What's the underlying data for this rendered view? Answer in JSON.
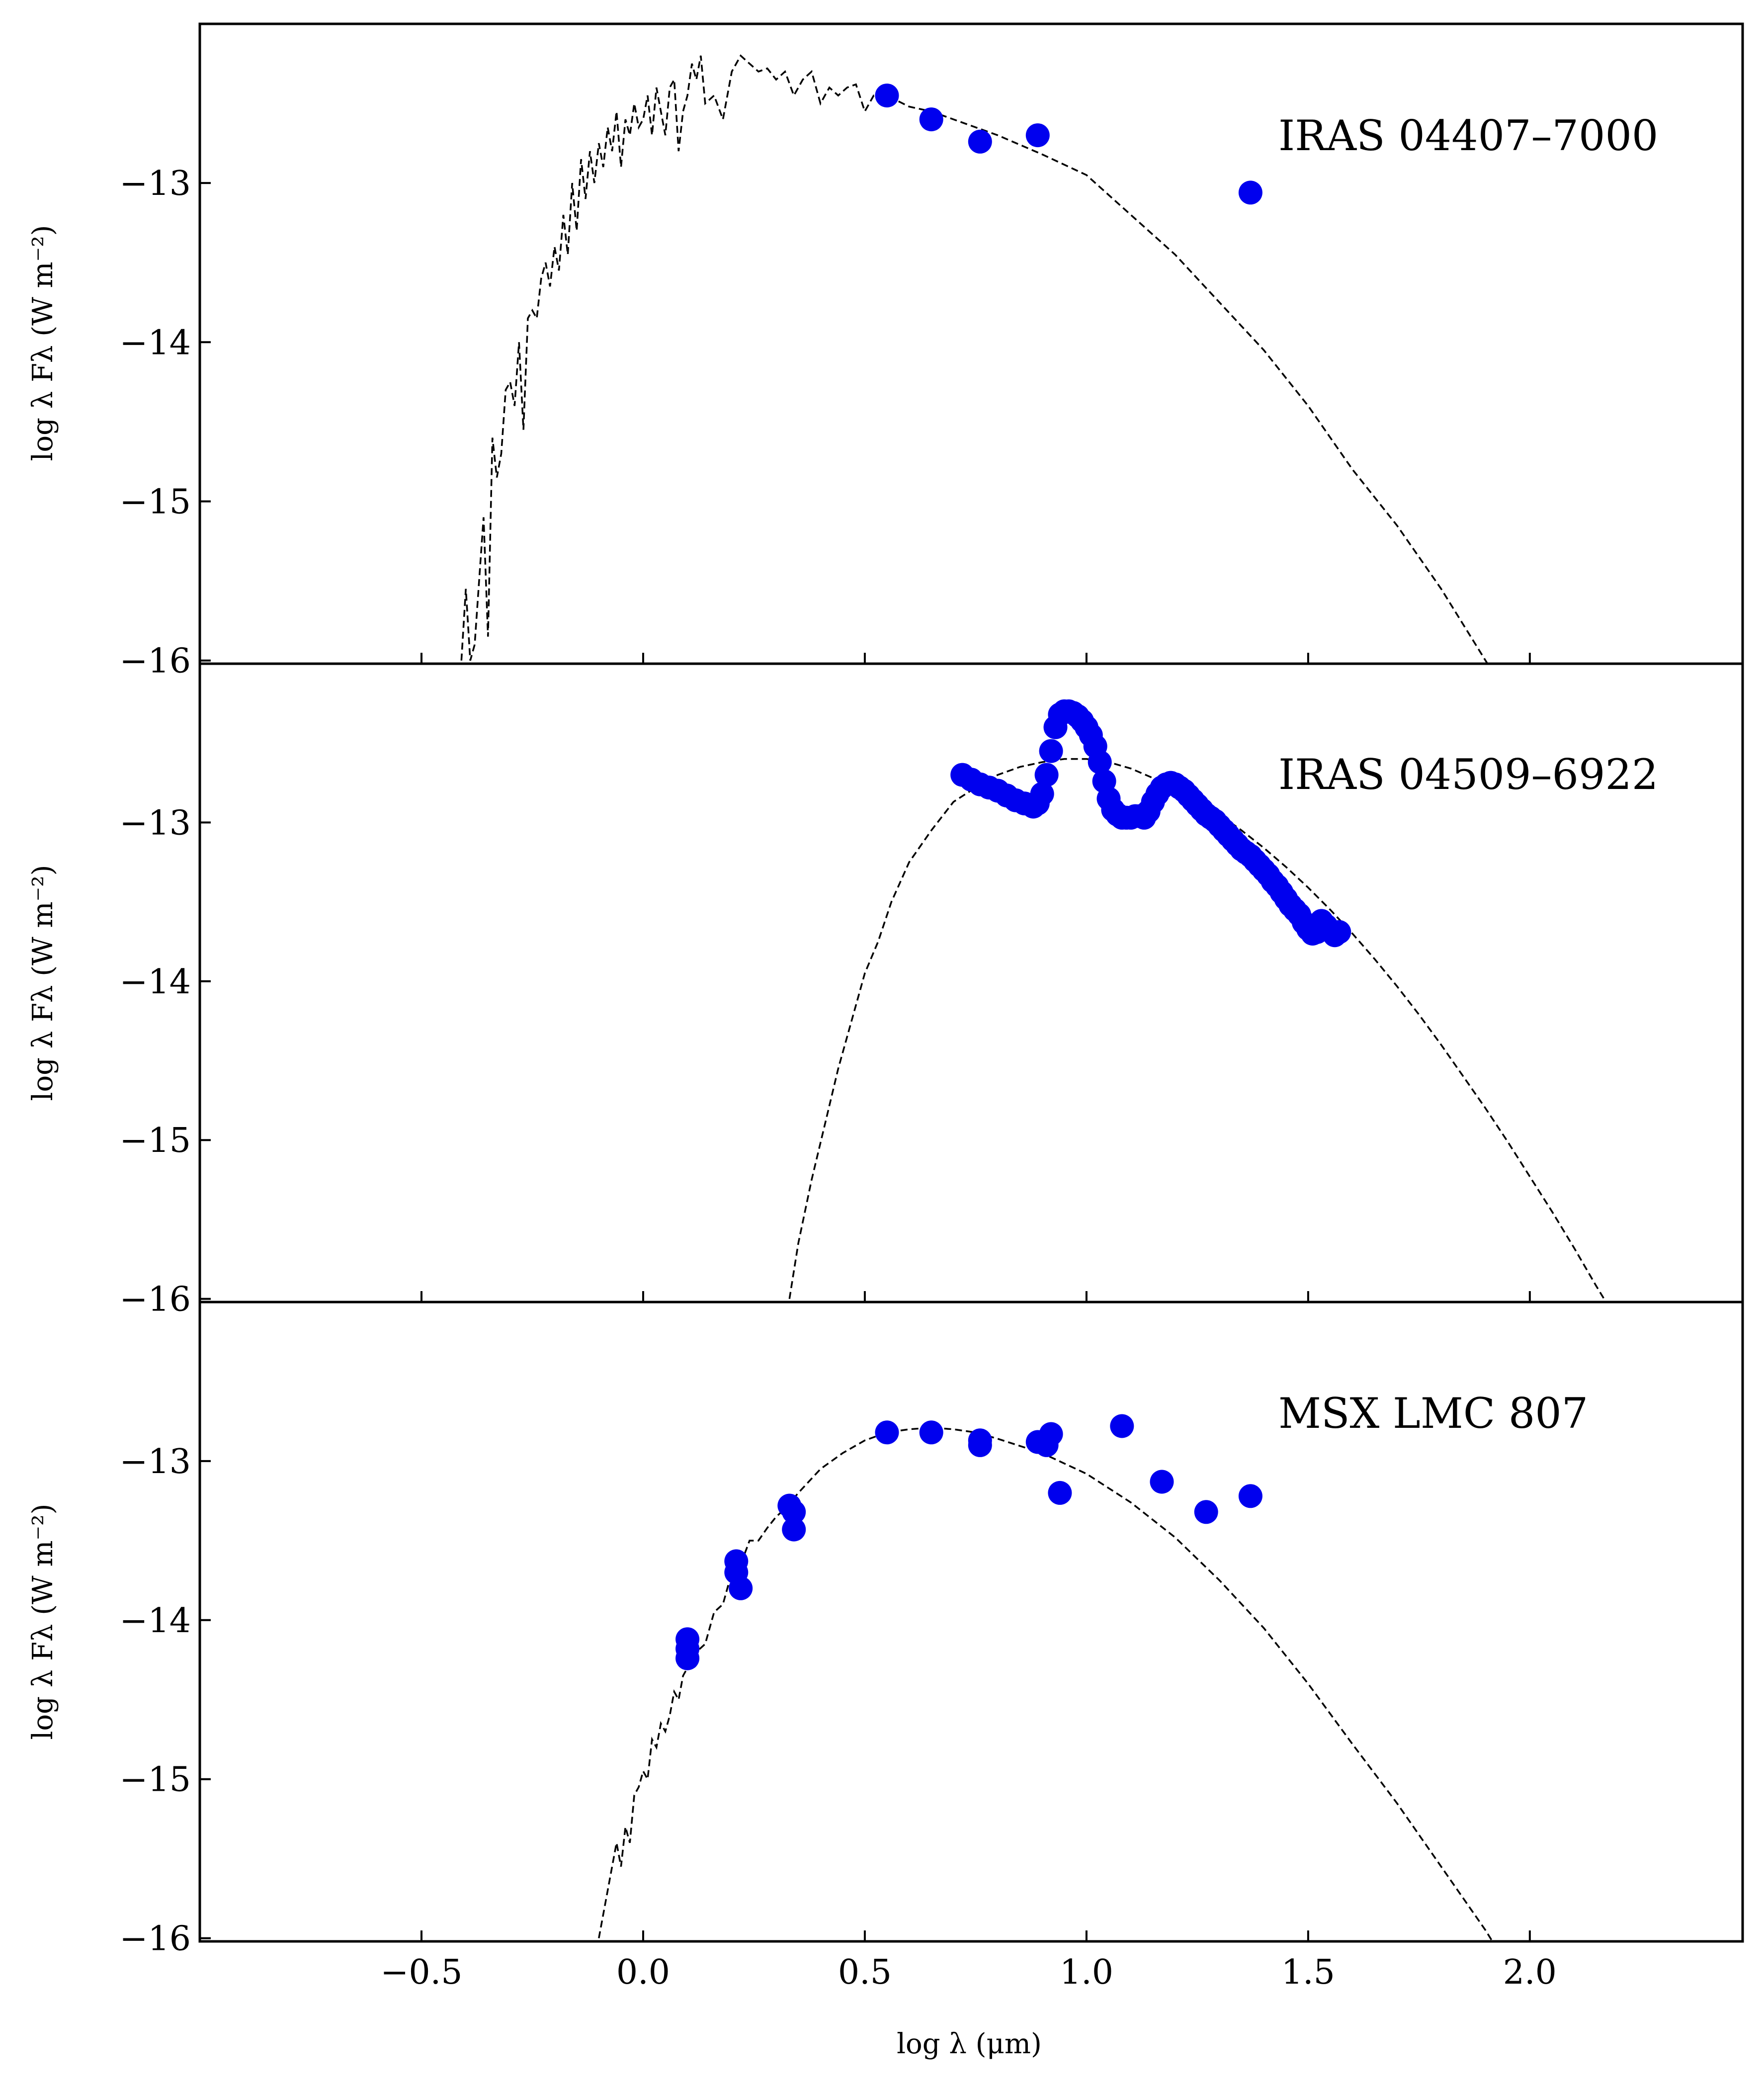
{
  "colors": {
    "points": "#0000ee",
    "model": "#000000",
    "frame": "#000000"
  },
  "chart_data": [
    {
      "type": "scatter",
      "annotation": "IRAS 04407–7000",
      "ylabel": "log λ Fλ (W m⁻²)",
      "xlabel": "",
      "xlim": [
        -1.0,
        2.48
      ],
      "ylim": [
        -16.02,
        -12.0
      ],
      "yticks": [
        -13,
        -14,
        -15,
        -16
      ],
      "ytick_labels": [
        "−13",
        "−14",
        "−15",
        "−16"
      ],
      "grid": false,
      "series": [
        {
          "kind": "points",
          "marker_r": 24,
          "x": [
            0.55,
            0.65,
            0.76,
            0.89,
            1.37
          ],
          "y": [
            -12.45,
            -12.6,
            -12.74,
            -12.7,
            -13.06
          ]
        },
        {
          "kind": "line",
          "x": [
            -0.41,
            -0.4,
            -0.39,
            -0.38,
            -0.37,
            -0.36,
            -0.35,
            -0.34,
            -0.33,
            -0.32,
            -0.31,
            -0.3,
            -0.29,
            -0.28,
            -0.27,
            -0.26,
            -0.25,
            -0.24,
            -0.23,
            -0.22,
            -0.21,
            -0.2,
            -0.19,
            -0.18,
            -0.17,
            -0.16,
            -0.15,
            -0.14,
            -0.13,
            -0.12,
            -0.11,
            -0.1,
            -0.09,
            -0.08,
            -0.07,
            -0.06,
            -0.05,
            -0.04,
            -0.03,
            -0.02,
            -0.01,
            0.0,
            0.01,
            0.02,
            0.03,
            0.04,
            0.05,
            0.06,
            0.07,
            0.08,
            0.09,
            0.1,
            0.11,
            0.12,
            0.13,
            0.14,
            0.16,
            0.18,
            0.2,
            0.22,
            0.24,
            0.26,
            0.28,
            0.3,
            0.32,
            0.34,
            0.36,
            0.38,
            0.4,
            0.42,
            0.44,
            0.46,
            0.48,
            0.5,
            0.52,
            0.55,
            0.6,
            0.65,
            0.7,
            0.8,
            0.9,
            1.0,
            1.1,
            1.2,
            1.3,
            1.4,
            1.5,
            1.6,
            1.7,
            1.8,
            1.9,
            2.0
          ],
          "y": [
            -16.0,
            -15.55,
            -16.0,
            -15.9,
            -15.5,
            -15.1,
            -15.85,
            -14.6,
            -14.85,
            -14.7,
            -14.3,
            -14.25,
            -14.4,
            -14.0,
            -14.55,
            -13.85,
            -13.8,
            -13.85,
            -13.6,
            -13.5,
            -13.65,
            -13.4,
            -13.55,
            -13.2,
            -13.45,
            -13.0,
            -13.3,
            -12.85,
            -13.1,
            -12.8,
            -13.0,
            -12.75,
            -12.9,
            -12.65,
            -12.8,
            -12.55,
            -12.9,
            -12.6,
            -12.7,
            -12.5,
            -12.65,
            -12.6,
            -12.45,
            -12.7,
            -12.4,
            -12.55,
            -12.7,
            -12.4,
            -12.35,
            -12.8,
            -12.55,
            -12.45,
            -12.25,
            -12.35,
            -12.2,
            -12.5,
            -12.45,
            -12.6,
            -12.3,
            -12.2,
            -12.25,
            -12.3,
            -12.28,
            -12.35,
            -12.3,
            -12.45,
            -12.35,
            -12.3,
            -12.5,
            -12.4,
            -12.45,
            -12.4,
            -12.38,
            -12.55,
            -12.45,
            -12.45,
            -12.52,
            -12.55,
            -12.6,
            -12.7,
            -12.82,
            -12.95,
            -13.2,
            -13.45,
            -13.75,
            -14.05,
            -14.4,
            -14.8,
            -15.15,
            -15.55,
            -16.0,
            -16.45
          ]
        }
      ]
    },
    {
      "type": "scatter",
      "annotation": "IRAS 04509–6922",
      "ylabel": "log λ Fλ (W m⁻²)",
      "xlabel": "",
      "xlim": [
        -1.0,
        2.48
      ],
      "ylim": [
        -16.02,
        -12.0
      ],
      "yticks": [
        -13,
        -14,
        -15,
        -16
      ],
      "ytick_labels": [
        "−13",
        "−14",
        "−15",
        "−16"
      ],
      "grid": false,
      "series": [
        {
          "kind": "points",
          "marker_r": 24,
          "x": [
            0.72,
            0.74,
            0.76,
            0.78,
            0.8,
            0.82,
            0.84,
            0.86,
            0.88,
            0.89,
            0.9,
            0.91,
            0.92,
            0.93,
            0.94,
            0.95,
            0.96,
            0.97,
            0.98,
            0.99,
            1.0,
            1.01,
            1.02,
            1.03,
            1.04,
            1.05,
            1.06,
            1.07,
            1.08,
            1.09,
            1.1,
            1.11,
            1.12,
            1.13,
            1.14,
            1.15,
            1.16,
            1.17,
            1.18,
            1.19,
            1.2,
            1.21,
            1.22,
            1.23,
            1.24,
            1.25,
            1.26,
            1.27,
            1.28,
            1.29,
            1.3,
            1.31,
            1.32,
            1.33,
            1.34,
            1.35,
            1.36,
            1.37,
            1.38,
            1.39,
            1.4,
            1.41,
            1.42,
            1.43,
            1.44,
            1.45,
            1.46,
            1.47,
            1.48,
            1.49,
            1.5,
            1.51,
            1.52,
            1.53,
            1.54,
            1.55,
            1.56,
            1.57
          ],
          "y": [
            -12.7,
            -12.73,
            -12.76,
            -12.78,
            -12.8,
            -12.83,
            -12.86,
            -12.88,
            -12.9,
            -12.88,
            -12.82,
            -12.7,
            -12.55,
            -12.4,
            -12.32,
            -12.3,
            -12.3,
            -12.31,
            -12.33,
            -12.36,
            -12.4,
            -12.45,
            -12.52,
            -12.62,
            -12.74,
            -12.85,
            -12.92,
            -12.95,
            -12.97,
            -12.97,
            -12.97,
            -12.96,
            -12.96,
            -12.97,
            -12.93,
            -12.87,
            -12.82,
            -12.78,
            -12.76,
            -12.75,
            -12.76,
            -12.78,
            -12.8,
            -12.83,
            -12.86,
            -12.89,
            -12.92,
            -12.95,
            -12.97,
            -12.99,
            -13.02,
            -13.05,
            -13.08,
            -13.11,
            -13.14,
            -13.17,
            -13.19,
            -13.21,
            -13.24,
            -13.27,
            -13.3,
            -13.33,
            -13.37,
            -13.4,
            -13.44,
            -13.48,
            -13.52,
            -13.55,
            -13.58,
            -13.63,
            -13.67,
            -13.7,
            -13.69,
            -13.62,
            -13.65,
            -13.68,
            -13.71,
            -13.69
          ]
        },
        {
          "kind": "line",
          "x": [
            0.33,
            0.35,
            0.38,
            0.41,
            0.44,
            0.47,
            0.5,
            0.53,
            0.56,
            0.6,
            0.65,
            0.7,
            0.75,
            0.8,
            0.85,
            0.9,
            0.95,
            1.0,
            1.05,
            1.1,
            1.15,
            1.2,
            1.25,
            1.3,
            1.35,
            1.4,
            1.45,
            1.5,
            1.55,
            1.6,
            1.65,
            1.7,
            1.75,
            1.8,
            1.85,
            1.9,
            1.95,
            2.0,
            2.05,
            2.1,
            2.15,
            2.2,
            2.25
          ],
          "y": [
            -16.0,
            -15.65,
            -15.25,
            -14.9,
            -14.55,
            -14.25,
            -13.95,
            -13.75,
            -13.5,
            -13.25,
            -13.05,
            -12.87,
            -12.78,
            -12.7,
            -12.65,
            -12.62,
            -12.6,
            -12.6,
            -12.62,
            -12.66,
            -12.72,
            -12.79,
            -12.86,
            -12.95,
            -13.05,
            -13.16,
            -13.28,
            -13.41,
            -13.55,
            -13.7,
            -13.86,
            -14.03,
            -14.21,
            -14.4,
            -14.6,
            -14.8,
            -15.01,
            -15.23,
            -15.45,
            -15.68,
            -15.92,
            -16.15,
            -16.4
          ]
        }
      ]
    },
    {
      "type": "scatter",
      "annotation": "MSX LMC 807",
      "ylabel": "log λ Fλ (W m⁻²)",
      "xlabel": "log λ (μm)",
      "xlim": [
        -1.0,
        2.48
      ],
      "ylim": [
        -16.02,
        -12.0
      ],
      "xticks": [
        -0.5,
        0.0,
        0.5,
        1.0,
        1.5,
        2.0
      ],
      "xtick_labels": [
        "−0.5",
        "0.0",
        "0.5",
        "1.0",
        "1.5",
        "2.0"
      ],
      "yticks": [
        -13,
        -14,
        -15,
        -16
      ],
      "ytick_labels": [
        "−13",
        "−14",
        "−15",
        "−16"
      ],
      "grid": false,
      "series": [
        {
          "kind": "points",
          "marker_r": 24,
          "x": [
            0.1,
            0.1,
            0.1,
            0.21,
            0.21,
            0.22,
            0.33,
            0.34,
            0.34,
            0.55,
            0.65,
            0.76,
            0.76,
            0.89,
            0.91,
            0.92,
            0.94,
            1.08,
            1.17,
            1.27,
            1.37
          ],
          "y": [
            -14.12,
            -14.18,
            -14.24,
            -13.63,
            -13.7,
            -13.8,
            -13.28,
            -13.32,
            -13.43,
            -12.82,
            -12.82,
            -12.87,
            -12.9,
            -12.88,
            -12.9,
            -12.83,
            -13.2,
            -12.78,
            -13.13,
            -13.32,
            -13.22
          ]
        },
        {
          "kind": "line",
          "x": [
            -0.1,
            -0.09,
            -0.08,
            -0.07,
            -0.06,
            -0.05,
            -0.04,
            -0.03,
            -0.02,
            -0.01,
            0.0,
            0.01,
            0.02,
            0.03,
            0.04,
            0.05,
            0.06,
            0.07,
            0.08,
            0.09,
            0.1,
            0.12,
            0.14,
            0.16,
            0.18,
            0.2,
            0.22,
            0.24,
            0.26,
            0.28,
            0.3,
            0.32,
            0.35,
            0.4,
            0.45,
            0.5,
            0.55,
            0.6,
            0.65,
            0.7,
            0.75,
            0.8,
            0.9,
            1.0,
            1.1,
            1.2,
            1.3,
            1.4,
            1.5,
            1.6,
            1.7,
            1.8,
            1.9,
            2.0
          ],
          "y": [
            -16.0,
            -15.85,
            -15.7,
            -15.55,
            -15.4,
            -15.55,
            -15.3,
            -15.4,
            -15.1,
            -15.05,
            -14.95,
            -15.0,
            -14.75,
            -14.8,
            -14.65,
            -14.7,
            -14.6,
            -14.45,
            -14.5,
            -14.35,
            -14.3,
            -14.2,
            -14.15,
            -13.95,
            -13.9,
            -13.7,
            -13.65,
            -13.5,
            -13.5,
            -13.42,
            -13.35,
            -13.3,
            -13.2,
            -13.05,
            -12.95,
            -12.87,
            -12.82,
            -12.8,
            -12.79,
            -12.8,
            -12.82,
            -12.86,
            -12.95,
            -13.08,
            -13.26,
            -13.48,
            -13.75,
            -14.05,
            -14.4,
            -14.78,
            -15.15,
            -15.55,
            -15.95,
            -16.4
          ]
        }
      ]
    }
  ]
}
